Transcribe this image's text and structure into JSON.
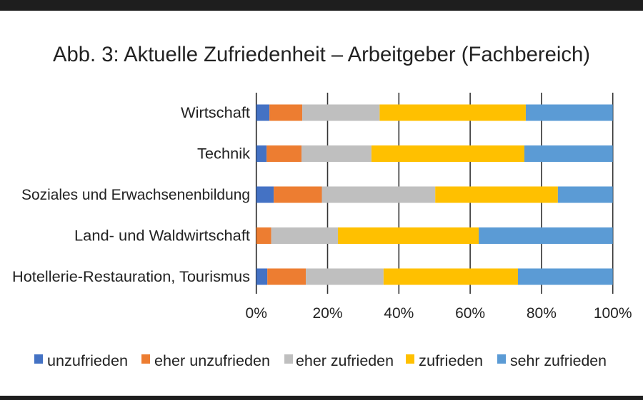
{
  "chart_data": {
    "type": "bar",
    "orientation": "horizontal",
    "stacked": "percent",
    "title": "Abb. 3: Aktuelle Zufriedenheit – Arbeitgeber (Fachbereich)",
    "categories": [
      "Wirtschaft",
      "Technik",
      "Soziales und Erwachsenenbildung",
      "Land- und Waldwirtschaft",
      "Hotellerie-Restauration, Tourismus"
    ],
    "series": [
      {
        "name": "unzufrieden",
        "color": "#4472c4",
        "values": [
          3.7,
          2.9,
          4.9,
          0.0,
          3.1
        ]
      },
      {
        "name": "eher unzufrieden",
        "color": "#ed7d31",
        "values": [
          9.2,
          9.8,
          13.5,
          4.2,
          10.8
        ]
      },
      {
        "name": "eher zufrieden",
        "color": "#bfbfbf",
        "values": [
          21.7,
          19.6,
          31.8,
          18.7,
          21.8
        ]
      },
      {
        "name": "zufrieden",
        "color": "#ffc000",
        "values": [
          41.0,
          42.9,
          34.4,
          39.5,
          37.7
        ]
      },
      {
        "name": "sehr zufrieden",
        "color": "#5b9bd5",
        "values": [
          24.4,
          24.8,
          15.4,
          37.6,
          26.6
        ]
      }
    ],
    "xlim": [
      0,
      100
    ],
    "xticks": [
      "0%",
      "20%",
      "40%",
      "60%",
      "80%",
      "100%"
    ],
    "grid": true,
    "legend": "bottom"
  }
}
